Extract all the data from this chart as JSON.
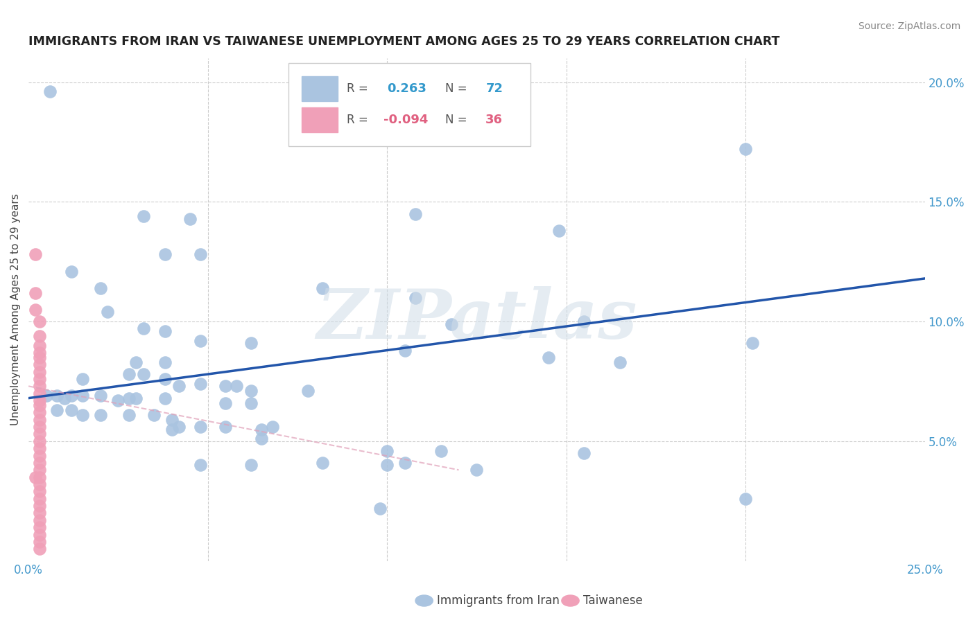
{
  "title": "IMMIGRANTS FROM IRAN VS TAIWANESE UNEMPLOYMENT AMONG AGES 25 TO 29 YEARS CORRELATION CHART",
  "source": "Source: ZipAtlas.com",
  "ylabel": "Unemployment Among Ages 25 to 29 years",
  "xlim": [
    0.0,
    0.25
  ],
  "ylim": [
    0.0,
    0.21
  ],
  "blue_color": "#aac4e0",
  "pink_color": "#f0a0b8",
  "line_blue_color": "#2255aa",
  "line_pink_color": "#e0a0b8",
  "watermark": "ZIPatlas",
  "blue_line_x": [
    0.0,
    0.25
  ],
  "blue_line_y": [
    0.068,
    0.118
  ],
  "pink_line_x": [
    0.0,
    0.12
  ],
  "pink_line_y": [
    0.073,
    0.038
  ],
  "blue_points": [
    [
      0.006,
      0.196
    ],
    [
      0.032,
      0.144
    ],
    [
      0.045,
      0.143
    ],
    [
      0.038,
      0.128
    ],
    [
      0.048,
      0.128
    ],
    [
      0.012,
      0.121
    ],
    [
      0.02,
      0.114
    ],
    [
      0.082,
      0.114
    ],
    [
      0.108,
      0.11
    ],
    [
      0.108,
      0.145
    ],
    [
      0.148,
      0.138
    ],
    [
      0.155,
      0.1
    ],
    [
      0.118,
      0.099
    ],
    [
      0.165,
      0.083
    ],
    [
      0.022,
      0.104
    ],
    [
      0.032,
      0.097
    ],
    [
      0.038,
      0.096
    ],
    [
      0.048,
      0.092
    ],
    [
      0.062,
      0.091
    ],
    [
      0.03,
      0.083
    ],
    [
      0.038,
      0.083
    ],
    [
      0.028,
      0.078
    ],
    [
      0.032,
      0.078
    ],
    [
      0.015,
      0.076
    ],
    [
      0.038,
      0.076
    ],
    [
      0.048,
      0.074
    ],
    [
      0.042,
      0.073
    ],
    [
      0.058,
      0.073
    ],
    [
      0.062,
      0.071
    ],
    [
      0.078,
      0.071
    ],
    [
      0.055,
      0.073
    ],
    [
      0.005,
      0.069
    ],
    [
      0.008,
      0.069
    ],
    [
      0.012,
      0.069
    ],
    [
      0.015,
      0.069
    ],
    [
      0.02,
      0.069
    ],
    [
      0.028,
      0.068
    ],
    [
      0.03,
      0.068
    ],
    [
      0.01,
      0.068
    ],
    [
      0.025,
      0.067
    ],
    [
      0.038,
      0.068
    ],
    [
      0.055,
      0.066
    ],
    [
      0.062,
      0.066
    ],
    [
      0.008,
      0.063
    ],
    [
      0.012,
      0.063
    ],
    [
      0.015,
      0.061
    ],
    [
      0.02,
      0.061
    ],
    [
      0.028,
      0.061
    ],
    [
      0.035,
      0.061
    ],
    [
      0.04,
      0.059
    ],
    [
      0.042,
      0.056
    ],
    [
      0.048,
      0.056
    ],
    [
      0.055,
      0.056
    ],
    [
      0.068,
      0.056
    ],
    [
      0.065,
      0.055
    ],
    [
      0.065,
      0.051
    ],
    [
      0.1,
      0.046
    ],
    [
      0.115,
      0.046
    ],
    [
      0.082,
      0.041
    ],
    [
      0.105,
      0.041
    ],
    [
      0.125,
      0.038
    ],
    [
      0.2,
      0.172
    ],
    [
      0.202,
      0.091
    ],
    [
      0.098,
      0.022
    ],
    [
      0.2,
      0.026
    ],
    [
      0.145,
      0.085
    ],
    [
      0.048,
      0.04
    ],
    [
      0.04,
      0.055
    ],
    [
      0.105,
      0.088
    ],
    [
      0.062,
      0.04
    ],
    [
      0.1,
      0.04
    ],
    [
      0.155,
      0.045
    ]
  ],
  "pink_points": [
    [
      0.002,
      0.128
    ],
    [
      0.002,
      0.112
    ],
    [
      0.002,
      0.105
    ],
    [
      0.003,
      0.1
    ],
    [
      0.003,
      0.094
    ],
    [
      0.003,
      0.09
    ],
    [
      0.003,
      0.087
    ],
    [
      0.003,
      0.085
    ],
    [
      0.003,
      0.082
    ],
    [
      0.003,
      0.079
    ],
    [
      0.003,
      0.076
    ],
    [
      0.003,
      0.073
    ],
    [
      0.003,
      0.07
    ],
    [
      0.003,
      0.067
    ],
    [
      0.003,
      0.065
    ],
    [
      0.003,
      0.062
    ],
    [
      0.003,
      0.059
    ],
    [
      0.003,
      0.056
    ],
    [
      0.003,
      0.053
    ],
    [
      0.003,
      0.05
    ],
    [
      0.003,
      0.047
    ],
    [
      0.003,
      0.044
    ],
    [
      0.003,
      0.041
    ],
    [
      0.003,
      0.038
    ],
    [
      0.003,
      0.035
    ],
    [
      0.003,
      0.032
    ],
    [
      0.003,
      0.029
    ],
    [
      0.003,
      0.026
    ],
    [
      0.003,
      0.023
    ],
    [
      0.003,
      0.02
    ],
    [
      0.003,
      0.017
    ],
    [
      0.003,
      0.014
    ],
    [
      0.003,
      0.011
    ],
    [
      0.003,
      0.008
    ],
    [
      0.003,
      0.005
    ],
    [
      0.002,
      0.035
    ]
  ]
}
